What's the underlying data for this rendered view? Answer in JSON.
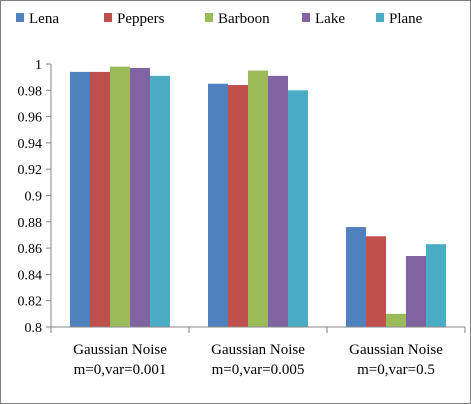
{
  "chart_data": {
    "type": "bar",
    "categories": [
      [
        "Gaussian Noise",
        "m=0,var=0.001"
      ],
      [
        "Gaussian Noise",
        "m=0,var=0.005"
      ],
      [
        "Gaussian Noise",
        "m=0,var=0.5"
      ]
    ],
    "series": [
      {
        "name": "Lena",
        "color": "#4f81bd",
        "values": [
          0.994,
          0.985,
          0.876
        ]
      },
      {
        "name": "Peppers",
        "color": "#c0504d",
        "values": [
          0.994,
          0.984,
          0.869
        ]
      },
      {
        "name": "Barboon",
        "color": "#9bbb59",
        "values": [
          0.998,
          0.995,
          0.81
        ]
      },
      {
        "name": "Lake",
        "color": "#8064a2",
        "values": [
          0.997,
          0.991,
          0.854
        ]
      },
      {
        "name": "Plane",
        "color": "#4bacc6",
        "values": [
          0.991,
          0.98,
          0.863
        ]
      }
    ],
    "ylim": [
      0.8,
      1.0
    ],
    "yticks": [
      "0.8",
      "0.82",
      "0.84",
      "0.86",
      "0.88",
      "0.9",
      "0.92",
      "0.94",
      "0.96",
      "0.98",
      "1"
    ],
    "grid": false,
    "legend_position": "top",
    "title": "",
    "xlabel": "",
    "ylabel": ""
  }
}
